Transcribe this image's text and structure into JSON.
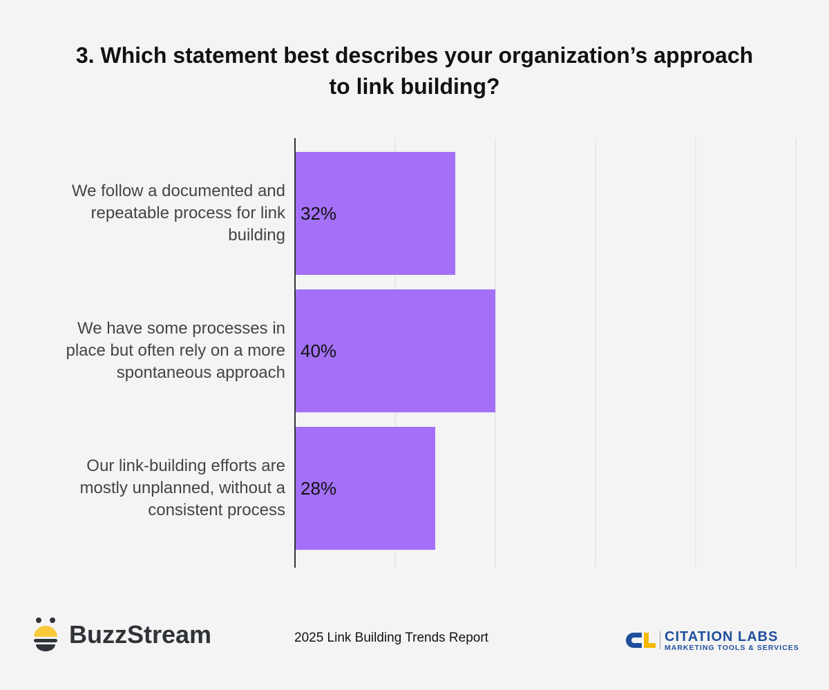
{
  "chart_data": {
    "type": "bar",
    "orientation": "horizontal",
    "title": "3. Which statement best describes your organization’s approach\nto link building?",
    "categories": [
      "We follow a documented and\nrepeatable process for link\nbuilding",
      "We have some processes in\nplace but often rely on a more\nspontaneous approach",
      "Our link-building efforts are\nmostly unplanned, without a\nconsistent process"
    ],
    "values": [
      32,
      40,
      28
    ],
    "data_labels": [
      "32%",
      "40%",
      "28%"
    ],
    "xlim": [
      0,
      100
    ],
    "grid": true,
    "bar_color": "#a370f7"
  },
  "footer": {
    "report": "2025 Link Building Trends Report",
    "left_logo": "BuzzStream",
    "right_logo": "CITATION LABS",
    "right_logo_sub": "MARKETING TOOLS & SERVICES"
  }
}
